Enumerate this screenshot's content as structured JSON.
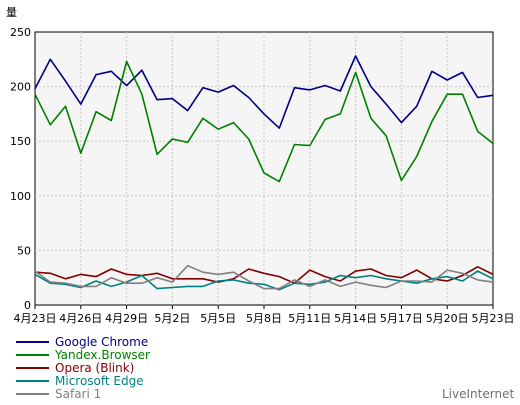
{
  "watermark": "LiveInternet",
  "chart_data": {
    "type": "line",
    "title": "",
    "ylabel": "量",
    "xlabel": "",
    "ylim": [
      0,
      250
    ],
    "yticks": [
      0,
      50,
      100,
      150,
      200,
      250
    ],
    "grid": true,
    "legend_position": "bottom-left",
    "x": [
      "4月23日",
      "4月24日",
      "4月25日",
      "4月26日",
      "4月27日",
      "4月28日",
      "4月29日",
      "4月30日",
      "5月1日",
      "5月2日",
      "5月3日",
      "5月4日",
      "5月5日",
      "5月6日",
      "5月7日",
      "5月8日",
      "5月9日",
      "5月10日",
      "5月11日",
      "5月12日",
      "5月13日",
      "5月14日",
      "5月15日",
      "5月16日",
      "5月17日",
      "5月18日",
      "5月19日",
      "5月20日",
      "5月21日",
      "5月22日",
      "5月23日"
    ],
    "xticks": [
      "4月23日",
      "4月26日",
      "4月29日",
      "5月2日",
      "5月5日",
      "5月8日",
      "5月11日",
      "5月14日",
      "5月17日",
      "5月20日",
      "5月23日"
    ],
    "series": [
      {
        "name": "Google Chrome",
        "color": "#000080",
        "values": [
          198,
          225,
          205,
          184,
          211,
          214,
          201,
          215,
          188,
          189,
          178,
          199,
          195,
          201,
          190,
          175,
          162,
          199,
          197,
          201,
          196,
          228,
          200,
          184,
          167,
          182,
          214,
          206,
          213,
          190,
          192
        ]
      },
      {
        "name": "Yandex.Browser",
        "color": "#008000",
        "values": [
          193,
          165,
          182,
          139,
          177,
          169,
          223,
          193,
          138,
          152,
          149,
          171,
          161,
          167,
          152,
          121,
          113,
          147,
          146,
          170,
          175,
          213,
          171,
          155,
          114,
          136,
          168,
          193,
          193,
          159,
          148
        ]
      },
      {
        "name": "Opera (Blink)",
        "color": "#800000",
        "values": [
          30,
          29,
          24,
          28,
          26,
          33,
          28,
          27,
          29,
          24,
          24,
          24,
          21,
          24,
          33,
          29,
          26,
          20,
          32,
          26,
          22,
          31,
          33,
          27,
          25,
          32,
          24,
          22,
          27,
          35,
          28
        ]
      },
      {
        "name": "Microsoft Edge",
        "color": "#008080",
        "values": [
          28,
          20,
          19,
          16,
          22,
          17,
          21,
          27,
          15,
          16,
          17,
          17,
          22,
          23,
          20,
          19,
          14,
          20,
          19,
          21,
          27,
          25,
          27,
          24,
          22,
          20,
          24,
          26,
          22,
          31,
          24
        ]
      },
      {
        "name": "Safari 1",
        "color": "#808080",
        "values": [
          31,
          21,
          20,
          17,
          17,
          25,
          20,
          20,
          25,
          21,
          36,
          30,
          28,
          30,
          22,
          15,
          15,
          23,
          17,
          23,
          17,
          21,
          18,
          16,
          22,
          22,
          21,
          32,
          29,
          23,
          21
        ]
      }
    ]
  }
}
